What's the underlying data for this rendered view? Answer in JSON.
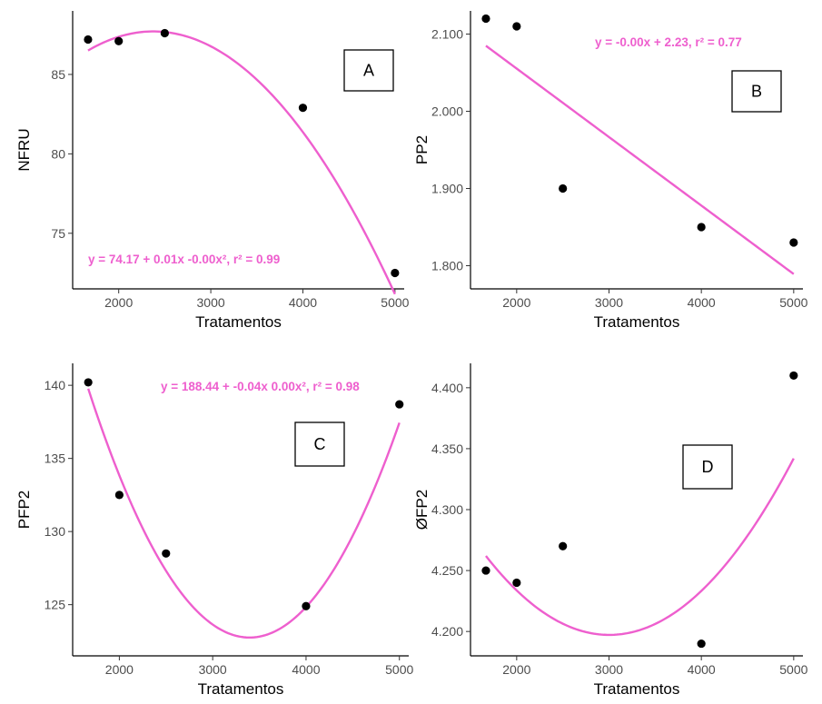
{
  "chart_data": [
    {
      "type": "scatter",
      "panel_label": "A",
      "xlabel": "Tratamentos",
      "ylabel": "NFRU",
      "xlim": [
        1500,
        5100
      ],
      "ylim": [
        71.5,
        89
      ],
      "xticks": [
        2000,
        3000,
        4000,
        5000
      ],
      "yticks": [
        75,
        80,
        85
      ],
      "points": {
        "x": [
          1667,
          2000,
          2500,
          4000,
          5000
        ],
        "y": [
          87.2,
          87.1,
          87.6,
          82.9,
          72.5
        ]
      },
      "fit": {
        "type": "quadratic",
        "coefficients": [
          74.17,
          0.0114,
          -2.4e-06
        ],
        "color": "#ee5fce"
      },
      "equation": "y = 74.17 + 0.01x -0.00x², r² = 0.99"
    },
    {
      "type": "scatter",
      "panel_label": "B",
      "xlabel": "Tratamentos",
      "ylabel": "PP2",
      "xlim": [
        1500,
        5100
      ],
      "ylim": [
        1.77,
        2.13
      ],
      "xticks": [
        2000,
        3000,
        4000,
        5000
      ],
      "yticks": [
        1.8,
        1.9,
        2.0,
        2.1
      ],
      "points": {
        "x": [
          1667,
          2000,
          2500,
          4000,
          5000
        ],
        "y": [
          2.12,
          2.11,
          1.9,
          1.85,
          1.83
        ]
      },
      "fit": {
        "type": "linear",
        "coefficients": [
          2.2327,
          -8.87e-05
        ],
        "color": "#ee5fce"
      },
      "equation": "y =  -0.00x + 2.23, r² = 0.77"
    },
    {
      "type": "scatter",
      "panel_label": "C",
      "xlabel": "Tratamentos",
      "ylabel": "PFP2",
      "xlim": [
        1500,
        5100
      ],
      "ylim": [
        121.5,
        141.5
      ],
      "xticks": [
        2000,
        3000,
        4000,
        5000
      ],
      "yticks": [
        125,
        130,
        135,
        140
      ],
      "points": {
        "x": [
          1667,
          2000,
          2500,
          4000,
          5000
        ],
        "y": [
          140.2,
          132.5,
          128.5,
          124.9,
          138.7
        ]
      },
      "fit": {
        "type": "quadratic",
        "coefficients": [
          188.44,
          -0.0387,
          5.7e-06
        ],
        "color": "#ee5fce"
      },
      "equation": "y = 188.44 + -0.04x 0.00x², r² = 0.98"
    },
    {
      "type": "scatter",
      "panel_label": "D",
      "xlabel": "Tratamentos",
      "ylabel": "ØFP2",
      "xlim": [
        1500,
        5100
      ],
      "ylim": [
        4.18,
        4.42
      ],
      "xticks": [
        2000,
        3000,
        4000,
        5000
      ],
      "yticks": [
        4.2,
        4.25,
        4.3,
        4.35,
        4.4
      ],
      "points": {
        "x": [
          1667,
          2000,
          2500,
          4000,
          5000
        ],
        "y": [
          4.25,
          4.24,
          4.27,
          4.19,
          4.41
        ]
      },
      "fit": {
        "type": "quadratic",
        "coefficients": [
          4.5245,
          -0.000218,
          3.63e-08
        ],
        "color": "#ee5fce"
      },
      "equation": ""
    }
  ]
}
